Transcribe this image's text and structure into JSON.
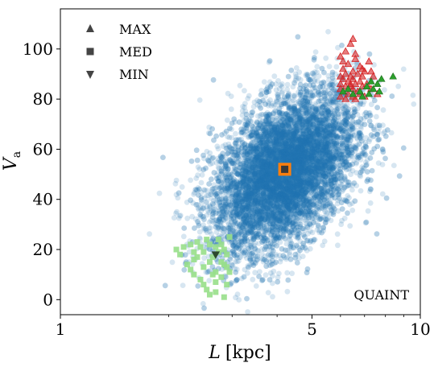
{
  "chart_data": {
    "type": "scatter",
    "title": "",
    "xlabel": "L [kpc]",
    "xlabel_parts": {
      "var": "L",
      "unit": "[kpc]"
    },
    "ylabel": "V_a",
    "ylabel_parts": {
      "var": "V",
      "sub": "a"
    },
    "xscale": "log",
    "xlim": [
      1,
      10
    ],
    "ylim": [
      -6,
      116
    ],
    "xticks": [
      1,
      5,
      10
    ],
    "xtick_labels": [
      "1",
      "5",
      "10"
    ],
    "yticks": [
      0,
      20,
      40,
      60,
      80,
      100
    ],
    "ytick_labels": [
      "0",
      "20",
      "40",
      "60",
      "80",
      "100"
    ],
    "grid": false,
    "legend_placement": "top-left",
    "annotation": "QUAINT",
    "colors": {
      "cloud": "#1f77b4",
      "max_red": "#d62728",
      "max_green": "#2ca02c",
      "min_cluster": "#98df8a",
      "median_square": "#ff7f0e",
      "legend_marker": "#444444"
    },
    "legend": [
      {
        "label": "MAX",
        "marker": "triangle-up"
      },
      {
        "label": "MED",
        "marker": "square"
      },
      {
        "label": "MIN",
        "marker": "triangle-down"
      }
    ],
    "series": [
      {
        "name": "",
        "role": "sample-cloud",
        "marker": "circle",
        "color": "#1f77b4",
        "distribution": {
          "x_center": 4.2,
          "x_log_sd": 0.1,
          "y_center": 51,
          "y_sd": 16
        },
        "count": 9000
      },
      {
        "name": "MAX",
        "role": "max-red",
        "marker": "triangle-up",
        "color": "#d62728",
        "points": [
          [
            6.5,
            104
          ],
          [
            6.4,
            102
          ],
          [
            6.2,
            99
          ],
          [
            6.0,
            97
          ],
          [
            6.6,
            96
          ],
          [
            7.2,
            95
          ],
          [
            6.3,
            94
          ],
          [
            6.8,
            93
          ],
          [
            6.1,
            92
          ],
          [
            6.5,
            91
          ],
          [
            7.0,
            91
          ],
          [
            6.2,
            90
          ],
          [
            6.7,
            90
          ],
          [
            6.0,
            89
          ],
          [
            6.4,
            89
          ],
          [
            6.9,
            89
          ],
          [
            7.4,
            89
          ],
          [
            6.1,
            88
          ],
          [
            6.5,
            88
          ],
          [
            6.3,
            87
          ],
          [
            6.8,
            87
          ],
          [
            6.0,
            86
          ],
          [
            6.6,
            86
          ],
          [
            7.1,
            86
          ],
          [
            6.2,
            85
          ],
          [
            6.4,
            85
          ],
          [
            6.9,
            85
          ],
          [
            6.0,
            84
          ],
          [
            6.5,
            84
          ],
          [
            7.3,
            84
          ],
          [
            6.1,
            83
          ],
          [
            6.7,
            83
          ],
          [
            6.3,
            82
          ],
          [
            6.8,
            82
          ],
          [
            7.6,
            82
          ],
          [
            6.0,
            81
          ],
          [
            6.5,
            81
          ],
          [
            7.0,
            81
          ],
          [
            6.2,
            80
          ],
          [
            6.6,
            80
          ],
          [
            6.4,
            86
          ],
          [
            6.9,
            92
          ],
          [
            7.3,
            91
          ],
          [
            6.1,
            95
          ],
          [
            6.6,
            98
          ]
        ]
      },
      {
        "name": "",
        "role": "max-green",
        "marker": "triangle-up",
        "color": "#2ca02c",
        "points": [
          [
            8.4,
            89
          ],
          [
            7.8,
            88
          ],
          [
            7.3,
            87
          ],
          [
            7.6,
            86
          ],
          [
            7.1,
            85
          ],
          [
            7.4,
            84
          ],
          [
            6.8,
            83
          ],
          [
            7.2,
            82
          ],
          [
            6.5,
            82
          ],
          [
            6.9,
            81
          ],
          [
            6.3,
            84
          ],
          [
            6.1,
            83
          ],
          [
            7.7,
            83
          ]
        ]
      },
      {
        "name": "",
        "role": "min-cluster",
        "marker": "square",
        "color": "#98df8a",
        "points": [
          [
            2.1,
            20
          ],
          [
            2.15,
            18
          ],
          [
            2.2,
            21
          ],
          [
            2.25,
            14
          ],
          [
            2.3,
            12
          ],
          [
            2.35,
            16
          ],
          [
            2.35,
            10
          ],
          [
            2.4,
            23
          ],
          [
            2.45,
            8
          ],
          [
            2.5,
            6
          ],
          [
            2.5,
            19
          ],
          [
            2.55,
            4
          ],
          [
            2.6,
            2
          ],
          [
            2.6,
            22
          ],
          [
            2.65,
            17
          ],
          [
            2.7,
            3
          ],
          [
            2.7,
            11
          ],
          [
            2.75,
            24
          ],
          [
            2.8,
            9
          ],
          [
            2.8,
            15
          ],
          [
            2.85,
            1
          ],
          [
            2.85,
            20
          ],
          [
            2.9,
            13
          ],
          [
            2.9,
            6
          ],
          [
            2.95,
            25
          ],
          [
            2.5,
            13
          ],
          [
            2.6,
            15
          ],
          [
            2.7,
            7
          ],
          [
            2.75,
            19
          ],
          [
            2.4,
            17
          ],
          [
            2.55,
            24
          ],
          [
            2.65,
            10
          ],
          [
            2.8,
            22
          ],
          [
            2.9,
            18
          ],
          [
            2.95,
            11
          ],
          [
            2.45,
            21
          ],
          [
            2.35,
            19
          ],
          [
            2.3,
            22
          ],
          [
            2.7,
            21
          ],
          [
            2.85,
            14
          ]
        ]
      },
      {
        "name": "MED",
        "role": "median",
        "marker": "square",
        "color": "#ff7f0e",
        "points": [
          [
            4.2,
            52
          ]
        ]
      },
      {
        "name": "MIN",
        "role": "minimum",
        "marker": "triangle-down",
        "color": "#2d4a2d",
        "points": [
          [
            2.7,
            18
          ]
        ]
      }
    ]
  }
}
